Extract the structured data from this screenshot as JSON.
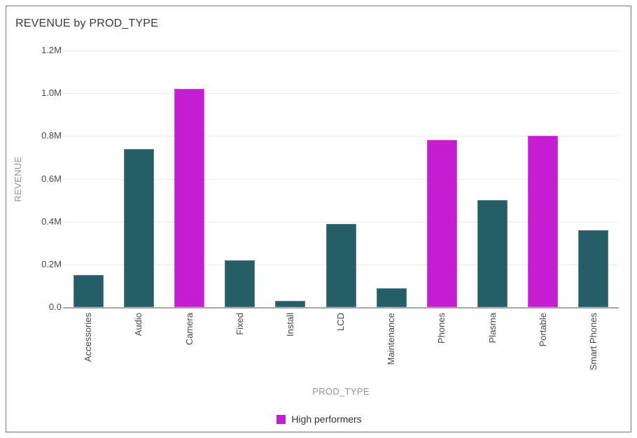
{
  "card": {
    "title": "REVENUE by PROD_TYPE"
  },
  "colors": {
    "bar_default": "#265e68",
    "bar_highlight": "#c51dd1",
    "gridline": "#e8ebee",
    "axis_line": "#a8a8a8",
    "frame_border": "#6b8260",
    "tick_text": "#45494e",
    "axis_title_text": "#8e9298",
    "title_text": "#36393d",
    "legend_text": "#303438"
  },
  "legend": {
    "items": [
      {
        "label": "High performers",
        "swatch_color": "#c51dd1"
      }
    ]
  },
  "chart_data": {
    "type": "bar",
    "title": "REVENUE by PROD_TYPE",
    "xlabel": "PROD_TYPE",
    "ylabel": "REVENUE",
    "categories": [
      "Accessories",
      "Audio",
      "Camera",
      "Fixed",
      "Install",
      "LCD",
      "Maintenance",
      "Phones",
      "Plasma",
      "Portable",
      "Smart Phones"
    ],
    "values": [
      0.15,
      0.74,
      1.02,
      0.22,
      0.03,
      0.39,
      0.09,
      0.78,
      0.5,
      0.8,
      0.36
    ],
    "value_unit": "millions (M)",
    "highlighted_categories": [
      "Camera",
      "Phones",
      "Portable"
    ],
    "highlight_legend_label": "High performers",
    "ylim": [
      0,
      1.2
    ],
    "yticks": [
      {
        "v": 0.0,
        "label": "0.0"
      },
      {
        "v": 0.2,
        "label": "0.2M"
      },
      {
        "v": 0.4,
        "label": "0.4M"
      },
      {
        "v": 0.6,
        "label": "0.6M"
      },
      {
        "v": 0.8,
        "label": "0.8M"
      },
      {
        "v": 1.0,
        "label": "1.0M"
      },
      {
        "v": 1.2,
        "label": "1.2M"
      }
    ],
    "grid": "horizontal",
    "legend_position": "bottom-center"
  }
}
